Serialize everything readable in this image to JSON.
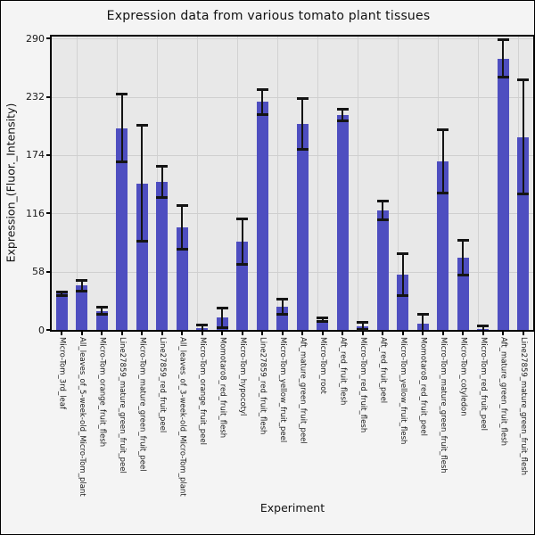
{
  "chart_data": {
    "type": "bar",
    "title": "Expression data from various tomato plant tissues",
    "xlabel": "Experiment",
    "ylabel": "Expression_(Fluor._Intensity)",
    "ylim": [
      0,
      292
    ],
    "yticks": [
      0,
      58,
      116,
      174,
      232,
      290
    ],
    "grid": "both",
    "legend": "none",
    "bar_color": "#4e4ec0",
    "error_color": "#141414",
    "plot_bg": "#e8e8e8",
    "figure_bg": "#f4f4f4",
    "categories": [
      "Micro-Tom_3rd_leaf",
      "All_leaves_of_5-week-old_Micro-Tom_plant",
      "Micro-Tom_orange_fruit_flesh",
      "Line27859_mature_green_fruit_peel",
      "Micro-Tom_mature_green_fruit_peel",
      "Line27859_red_fruit_peel",
      "All_leaves_of_3-week-old_Micro-Tom_plant",
      "Micro-Tom_orange_fruit_peel",
      "Momotaro8_red_fruit_flesh",
      "Micro-Tom_hypocotyl",
      "Line27859_red_fruit_flesh",
      "Micro-Tom_yellow_fruit_peel",
      "Aft_mature_green_fruit_peel",
      "Micro-Tom_root",
      "Aft_red_fruit_flesh",
      "Micro-Tom_red_fruit_flesh",
      "Aft_red_fruit_peel",
      "Micro-Tom_yellow_fruit_flesh",
      "Momotaro8_red_fruit_peel",
      "Micro-Tom_mature_green_fruit_flesh",
      "Micro-Tom_cotyledon",
      "Micro-Tom_red_fruit_peel",
      "Aft_mature_green_fruit_flesh",
      "Line27859_mature_green_fruit_flesh"
    ],
    "values": [
      36,
      44,
      19,
      201,
      146,
      147,
      102,
      2,
      12,
      88,
      227,
      23,
      205,
      10,
      214,
      4,
      119,
      55,
      6,
      168,
      72,
      1,
      270,
      192
    ],
    "errors": [
      2,
      6,
      4,
      34,
      58,
      16,
      22,
      3,
      10,
      23,
      13,
      8,
      26,
      2,
      6,
      4,
      10,
      21,
      10,
      32,
      18,
      3,
      19,
      57
    ]
  }
}
